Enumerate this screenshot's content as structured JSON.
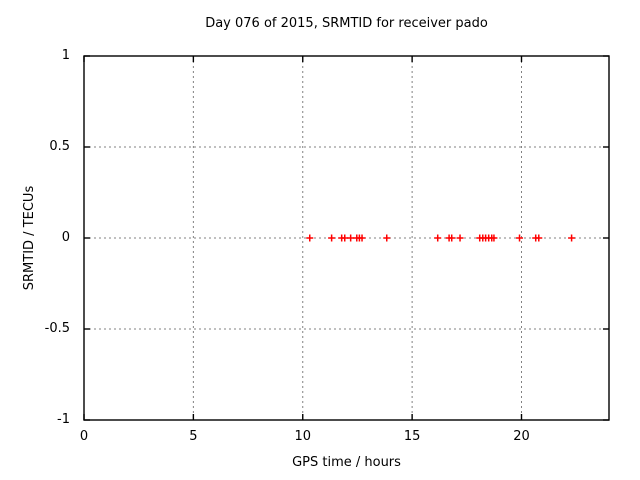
{
  "chart_data": {
    "type": "scatter",
    "title": "Day 076 of 2015, SRMTID for receiver pado",
    "xlabel": "GPS time / hours",
    "ylabel": "SRMTID / TECUs",
    "xlim": [
      0,
      24
    ],
    "ylim": [
      -1,
      1
    ],
    "xticks": [
      0,
      5,
      10,
      15,
      20
    ],
    "yticks": [
      -1,
      -0.5,
      0,
      0.5,
      1
    ],
    "grid": true,
    "legend_position": "none",
    "marker": {
      "symbol": "plus",
      "size": 7
    },
    "series": [
      {
        "name": "SRMTID",
        "x": [
          10.32,
          11.32,
          11.78,
          11.92,
          12.19,
          12.47,
          12.59,
          12.71,
          13.84,
          16.17,
          16.69,
          16.81,
          17.19,
          18.09,
          18.23,
          18.36,
          18.5,
          18.64,
          18.74,
          19.91,
          20.65,
          20.79,
          22.29
        ],
        "y": [
          0,
          0,
          0,
          0,
          0,
          0,
          0,
          0,
          0,
          0,
          0,
          0,
          0,
          0,
          0,
          0,
          0,
          0,
          0,
          0,
          0,
          0,
          0
        ]
      }
    ]
  },
  "colors": {
    "background": "#ffffff",
    "axis": "#000000",
    "grid": "#808080",
    "marker": "#ff0000",
    "text": "#000000"
  }
}
